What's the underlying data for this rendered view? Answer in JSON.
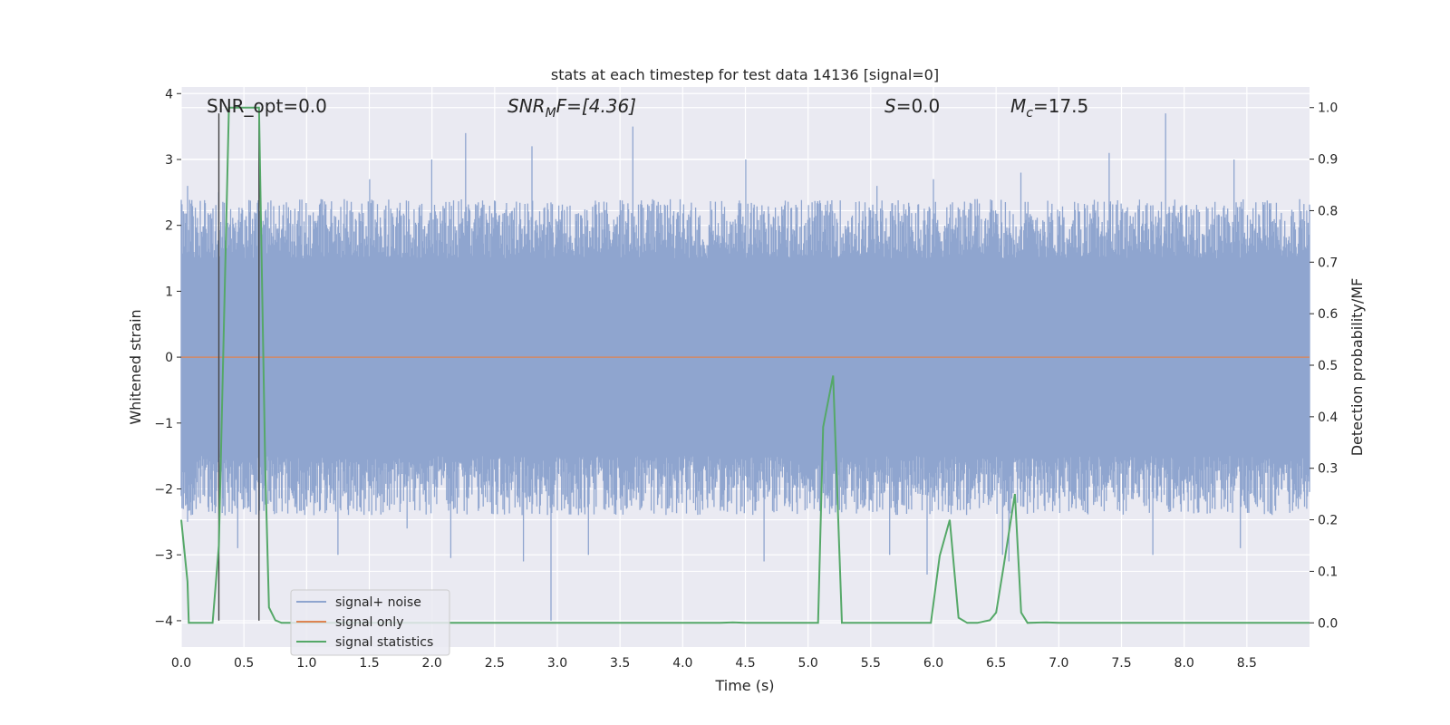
{
  "chart_data": {
    "type": "line",
    "title": "stats at each timestep for test data 14136 [signal=0]",
    "xlabel": "Time (s)",
    "ylabel_left": "Whitened strain",
    "ylabel_right": "Detection probability/MF",
    "xlim": [
      0.0,
      9.0
    ],
    "ylim_left": [
      -4.4,
      4.1
    ],
    "ylim_right": [
      -0.047,
      1.04
    ],
    "x_ticks": [
      "0.0",
      "0.5",
      "1.0",
      "1.5",
      "2.0",
      "2.5",
      "3.0",
      "3.5",
      "4.0",
      "4.5",
      "5.0",
      "5.5",
      "6.0",
      "6.5",
      "7.0",
      "7.5",
      "8.0",
      "8.5"
    ],
    "y_ticks_left": [
      "-4",
      "-3",
      "-2",
      "-1",
      "0",
      "1",
      "2",
      "3",
      "4"
    ],
    "y_ticks_right": [
      "0.0",
      "0.1",
      "0.2",
      "0.3",
      "0.4",
      "0.5",
      "0.6",
      "0.7",
      "0.8",
      "0.9",
      "1.0"
    ],
    "grid": true,
    "legend_position": "lower-left",
    "annotations": {
      "snr_opt": "SNR_opt=0.0",
      "snr_mf_main": "SNR",
      "snr_mf_sub": "M",
      "snr_mf_rest": "F=[4.36]",
      "s_main": "S",
      "s_rest": "=0.0",
      "mc_main": "M",
      "mc_sub": "c",
      "mc_rest": "=17.5"
    },
    "vertical_markers": [
      0.3,
      0.62
    ],
    "series": [
      {
        "name": "signal+ noise",
        "color": "#8fa5cf",
        "style": "dense noisy strain",
        "envelope_upper": 2.0,
        "envelope_lower": -2.0,
        "peaks": [
          [
            0.05,
            2.6
          ],
          [
            0.3,
            2.5
          ],
          [
            1.5,
            2.7
          ],
          [
            2.0,
            3.0
          ],
          [
            2.27,
            3.4
          ],
          [
            2.8,
            3.2
          ],
          [
            3.6,
            3.5
          ],
          [
            4.5,
            3.0
          ],
          [
            5.55,
            2.6
          ],
          [
            6.0,
            2.7
          ],
          [
            6.7,
            2.8
          ],
          [
            7.4,
            3.1
          ],
          [
            7.85,
            3.7
          ],
          [
            8.4,
            3.0
          ]
        ],
        "troughs": [
          [
            0.05,
            -2.5
          ],
          [
            0.35,
            -2.4
          ],
          [
            0.45,
            -2.9
          ],
          [
            1.25,
            -3.0
          ],
          [
            1.8,
            -2.6
          ],
          [
            2.15,
            -3.05
          ],
          [
            2.73,
            -3.1
          ],
          [
            2.95,
            -4.0
          ],
          [
            3.25,
            -3.0
          ],
          [
            4.65,
            -3.1
          ],
          [
            5.65,
            -3.0
          ],
          [
            5.95,
            -3.3
          ],
          [
            6.55,
            -3.0
          ],
          [
            6.6,
            -3.1
          ],
          [
            7.75,
            -3.0
          ],
          [
            8.45,
            -2.9
          ]
        ]
      },
      {
        "name": "signal only",
        "color": "#dd8452",
        "values": [
          [
            0.0,
            0.0
          ],
          [
            9.0,
            0.0
          ]
        ]
      },
      {
        "name": "signal statistics",
        "color": "#55a868",
        "axis": "right",
        "values": [
          [
            0.0,
            0.2
          ],
          [
            0.05,
            0.08
          ],
          [
            0.06,
            0.0
          ],
          [
            0.25,
            0.0
          ],
          [
            0.3,
            0.15
          ],
          [
            0.38,
            1.0
          ],
          [
            0.45,
            1.0
          ],
          [
            0.62,
            1.0
          ],
          [
            0.67,
            0.3
          ],
          [
            0.7,
            0.03
          ],
          [
            0.75,
            0.005
          ],
          [
            0.8,
            0.0
          ],
          [
            4.3,
            0.0
          ],
          [
            4.4,
            0.001
          ],
          [
            4.5,
            0.0
          ],
          [
            5.08,
            0.0
          ],
          [
            5.12,
            0.38
          ],
          [
            5.2,
            0.48
          ],
          [
            5.27,
            0.0
          ],
          [
            5.98,
            0.0
          ],
          [
            6.05,
            0.13
          ],
          [
            6.13,
            0.2
          ],
          [
            6.2,
            0.01
          ],
          [
            6.27,
            0.0
          ],
          [
            6.35,
            0.0
          ],
          [
            6.45,
            0.005
          ],
          [
            6.5,
            0.02
          ],
          [
            6.56,
            0.11
          ],
          [
            6.65,
            0.25
          ],
          [
            6.7,
            0.02
          ],
          [
            6.75,
            0.0
          ],
          [
            6.9,
            0.001
          ],
          [
            7.0,
            0.0
          ],
          [
            9.0,
            0.0
          ]
        ]
      }
    ]
  }
}
